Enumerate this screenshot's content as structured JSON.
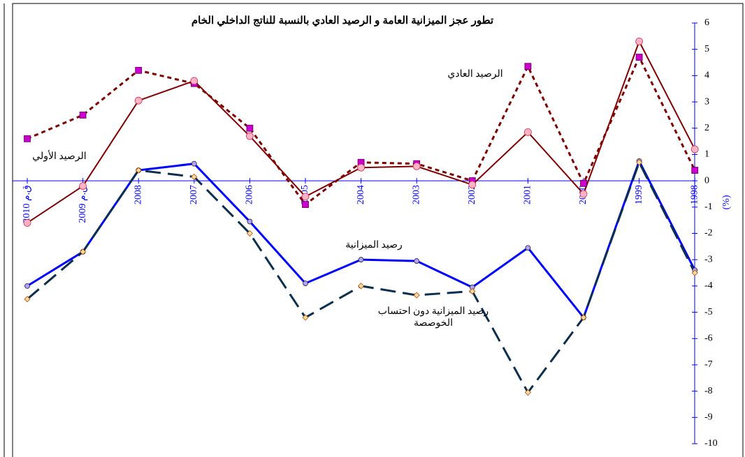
{
  "chart_data": {
    "type": "line",
    "title": "تطور عجز الميزانية العامة و الرصيد العادي بالنسبة للناتج الداخلي الخام",
    "y_label": "(%)",
    "categories": [
      "2010 ق.م",
      "2009 ق.م",
      "2008",
      "2007",
      "2006",
      "2005",
      "2004",
      "2003",
      "2002",
      "2001",
      "2000",
      "1999",
      "1998"
    ],
    "ylim": [
      -10,
      6
    ],
    "yticks": [
      -10,
      -9,
      -8,
      -7,
      -6,
      -5,
      -4,
      -3,
      -2,
      -1,
      0,
      1,
      2,
      3,
      4,
      5,
      6
    ],
    "series": [
      {
        "name": "الرصيد العادي",
        "color": "#800000",
        "marker_color": "#cc00cc",
        "marker": "square",
        "dash": "dotted",
        "values": [
          1.6,
          2.5,
          4.2,
          3.7,
          2.0,
          -0.9,
          0.7,
          0.65,
          0.0,
          4.35,
          -0.1,
          4.7,
          0.4
        ]
      },
      {
        "name": "الرصيد الأولي",
        "color": "#800000",
        "marker_color": "#ffb3c6",
        "marker": "circle",
        "dash": "solid",
        "values": [
          -1.6,
          -0.2,
          3.05,
          3.8,
          1.7,
          -0.6,
          0.5,
          0.55,
          -0.15,
          1.85,
          -0.5,
          5.3,
          1.2
        ]
      },
      {
        "name": "رصيد الميزانية",
        "color": "#0000ff",
        "marker_color": "#b0a0ff",
        "marker": "circle",
        "dash": "solid",
        "values": [
          -4.0,
          -2.7,
          0.4,
          0.65,
          -1.55,
          -3.9,
          -3.0,
          -3.05,
          -4.05,
          -2.55,
          -5.2,
          0.75,
          -3.4
        ]
      },
      {
        "name": "رصيد الميزانية دون احتساب الخوصصة",
        "color": "#0a2f4f",
        "marker_color": "#ffd9a0",
        "marker": "diamond",
        "dash": "dashed",
        "values": [
          -4.5,
          -2.7,
          0.4,
          0.15,
          -2.0,
          -5.2,
          -4.0,
          -4.35,
          -4.2,
          -8.05,
          -5.2,
          0.7,
          -3.5
        ]
      }
    ]
  }
}
